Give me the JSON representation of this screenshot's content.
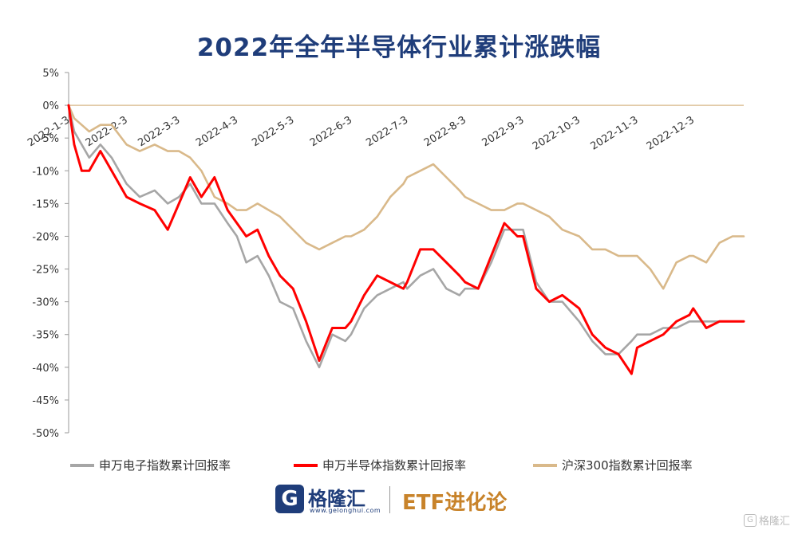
{
  "title": "2022年全年半导体行业累计涨跌幅",
  "footer": {
    "brand": "格隆汇",
    "brand_url": "www.gelonghui.com",
    "brand_icon": "G",
    "right_text": "ETF进化论",
    "watermark": "格隆汇"
  },
  "colors": {
    "electronics": "#a6a6a6",
    "semiconductor": "#ff0000",
    "hs300": "#d9b98a",
    "title": "#1f3d7a"
  },
  "chart_data": {
    "type": "line",
    "title": "2022年全年半导体行业累计涨跌幅",
    "xlabel": "",
    "ylabel": "",
    "ylim": [
      -50,
      5
    ],
    "yticks": [
      "5%",
      "0%",
      "-5%",
      "-10%",
      "-15%",
      "-20%",
      "-25%",
      "-30%",
      "-35%",
      "-40%",
      "-45%",
      "-50%"
    ],
    "x_ticks": [
      "2022-1-3",
      "2022-2-3",
      "2022-3-3",
      "2022-4-3",
      "2022-5-3",
      "2022-6-3",
      "2022-7-3",
      "2022-8-3",
      "2022-9-3",
      "2022-10-3",
      "2022-11-3",
      "2022-12-3"
    ],
    "x_domain": [
      "2022-01-03",
      "2022-12-30"
    ],
    "legend_position": "bottom",
    "grid": false,
    "series": [
      {
        "name": "申万电子指数累计回报率",
        "key": "electronics",
        "x": [
          "2022-01-03",
          "2022-01-06",
          "2022-01-10",
          "2022-01-14",
          "2022-01-20",
          "2022-01-26",
          "2022-02-03",
          "2022-02-10",
          "2022-02-18",
          "2022-02-25",
          "2022-03-03",
          "2022-03-09",
          "2022-03-15",
          "2022-03-22",
          "2022-03-29",
          "2022-04-03",
          "2022-04-08",
          "2022-04-14",
          "2022-04-20",
          "2022-04-26",
          "2022-05-03",
          "2022-05-10",
          "2022-05-17",
          "2022-05-24",
          "2022-05-31",
          "2022-06-03",
          "2022-06-10",
          "2022-06-17",
          "2022-06-24",
          "2022-07-01",
          "2022-07-03",
          "2022-07-10",
          "2022-07-17",
          "2022-07-24",
          "2022-07-31",
          "2022-08-03",
          "2022-08-10",
          "2022-08-17",
          "2022-08-24",
          "2022-08-31",
          "2022-09-03",
          "2022-09-10",
          "2022-09-17",
          "2022-09-24",
          "2022-10-03",
          "2022-10-10",
          "2022-10-17",
          "2022-10-24",
          "2022-10-31",
          "2022-11-03",
          "2022-11-10",
          "2022-11-17",
          "2022-11-24",
          "2022-12-01",
          "2022-12-03",
          "2022-12-10",
          "2022-12-17",
          "2022-12-24",
          "2022-12-30"
        ],
        "values": [
          0,
          -4,
          -6,
          -8,
          -6,
          -8,
          -12,
          -14,
          -13,
          -15,
          -14,
          -12,
          -15,
          -15,
          -18,
          -20,
          -24,
          -23,
          -26,
          -30,
          -31,
          -36,
          -40,
          -35,
          -36,
          -35,
          -31,
          -29,
          -28,
          -27,
          -28,
          -26,
          -25,
          -28,
          -29,
          -28,
          -28,
          -24,
          -19,
          -19,
          -19,
          -27,
          -30,
          -30,
          -33,
          -36,
          -38,
          -38,
          -36,
          -35,
          -35,
          -34,
          -34,
          -33,
          -33,
          -33,
          -33,
          -33,
          -33
        ]
      },
      {
        "name": "申万半导体指数累计回报率",
        "key": "semiconductor",
        "x": [
          "2022-01-03",
          "2022-01-06",
          "2022-01-10",
          "2022-01-14",
          "2022-01-20",
          "2022-01-26",
          "2022-02-03",
          "2022-02-10",
          "2022-02-18",
          "2022-02-25",
          "2022-03-03",
          "2022-03-09",
          "2022-03-15",
          "2022-03-22",
          "2022-03-29",
          "2022-04-03",
          "2022-04-08",
          "2022-04-14",
          "2022-04-20",
          "2022-04-26",
          "2022-05-03",
          "2022-05-10",
          "2022-05-17",
          "2022-05-24",
          "2022-05-31",
          "2022-06-03",
          "2022-06-10",
          "2022-06-17",
          "2022-06-24",
          "2022-07-01",
          "2022-07-03",
          "2022-07-10",
          "2022-07-17",
          "2022-07-24",
          "2022-07-31",
          "2022-08-03",
          "2022-08-10",
          "2022-08-17",
          "2022-08-24",
          "2022-08-31",
          "2022-09-03",
          "2022-09-10",
          "2022-09-17",
          "2022-09-24",
          "2022-10-03",
          "2022-10-10",
          "2022-10-17",
          "2022-10-24",
          "2022-10-31",
          "2022-11-03",
          "2022-11-10",
          "2022-11-17",
          "2022-11-24",
          "2022-12-01",
          "2022-12-03",
          "2022-12-10",
          "2022-12-17",
          "2022-12-24",
          "2022-12-30"
        ],
        "values": [
          0,
          -6,
          -10,
          -10,
          -7,
          -10,
          -14,
          -15,
          -16,
          -19,
          -15,
          -11,
          -14,
          -11,
          -16,
          -18,
          -20,
          -19,
          -23,
          -26,
          -28,
          -33,
          -39,
          -34,
          -34,
          -33,
          -29,
          -26,
          -27,
          -28,
          -27,
          -22,
          -22,
          -24,
          -26,
          -27,
          -28,
          -23,
          -18,
          -20,
          -20,
          -28,
          -30,
          -29,
          -31,
          -35,
          -37,
          -38,
          -41,
          -37,
          -36,
          -35,
          -33,
          -32,
          -31,
          -34,
          -33,
          -33,
          -33
        ]
      },
      {
        "name": "沪深300指数累计回报率",
        "key": "hs300",
        "x": [
          "2022-01-03",
          "2022-01-06",
          "2022-01-10",
          "2022-01-14",
          "2022-01-20",
          "2022-01-26",
          "2022-02-03",
          "2022-02-10",
          "2022-02-18",
          "2022-02-25",
          "2022-03-03",
          "2022-03-09",
          "2022-03-15",
          "2022-03-22",
          "2022-03-29",
          "2022-04-03",
          "2022-04-08",
          "2022-04-14",
          "2022-04-20",
          "2022-04-26",
          "2022-05-03",
          "2022-05-10",
          "2022-05-17",
          "2022-05-24",
          "2022-05-31",
          "2022-06-03",
          "2022-06-10",
          "2022-06-17",
          "2022-06-24",
          "2022-07-01",
          "2022-07-03",
          "2022-07-10",
          "2022-07-17",
          "2022-07-24",
          "2022-07-31",
          "2022-08-03",
          "2022-08-10",
          "2022-08-17",
          "2022-08-24",
          "2022-08-31",
          "2022-09-03",
          "2022-09-10",
          "2022-09-17",
          "2022-09-24",
          "2022-10-03",
          "2022-10-10",
          "2022-10-17",
          "2022-10-24",
          "2022-10-31",
          "2022-11-03",
          "2022-11-10",
          "2022-11-17",
          "2022-11-24",
          "2022-12-01",
          "2022-12-03",
          "2022-12-10",
          "2022-12-17",
          "2022-12-24",
          "2022-12-30"
        ],
        "values": [
          0,
          -2,
          -3,
          -4,
          -3,
          -3,
          -6,
          -7,
          -6,
          -7,
          -7,
          -8,
          -10,
          -14,
          -15,
          -16,
          -16,
          -15,
          -16,
          -17,
          -19,
          -21,
          -22,
          -21,
          -20,
          -20,
          -19,
          -17,
          -14,
          -12,
          -11,
          -10,
          -9,
          -11,
          -13,
          -14,
          -15,
          -16,
          -16,
          -15,
          -15,
          -16,
          -17,
          -19,
          -20,
          -22,
          -22,
          -23,
          -23,
          -23,
          -25,
          -28,
          -24,
          -23,
          -23,
          -24,
          -21,
          -20,
          -20
        ]
      }
    ]
  }
}
